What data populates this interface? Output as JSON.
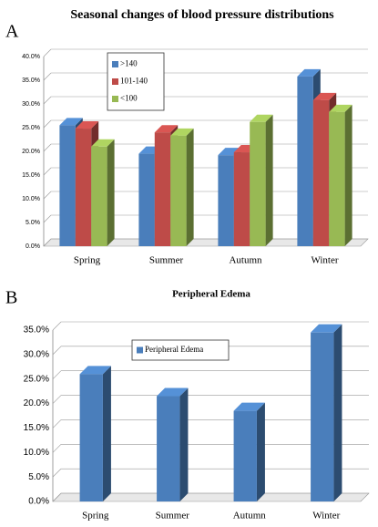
{
  "chart_data": [
    {
      "type": "bar",
      "panel_label": "A",
      "title": "Seasonal changes of blood pressure distributions",
      "categories": [
        "Spring",
        "Summer",
        "Autumn",
        "Winter"
      ],
      "series": [
        {
          "name": ">140",
          "color": "#4a7ebb",
          "values": [
            25.5,
            19.5,
            19.2,
            35.8
          ]
        },
        {
          "name": "101-140",
          "color": "#be4b48",
          "values": [
            24.8,
            24.0,
            19.8,
            30.8
          ]
        },
        {
          "name": "<100",
          "color": "#98b954",
          "values": [
            21.0,
            23.3,
            26.2,
            28.3
          ]
        }
      ],
      "ylim": [
        0,
        40
      ],
      "yticks": [
        {
          "value": 0,
          "label": "0.0%"
        },
        {
          "value": 5,
          "label": "5.0%"
        },
        {
          "value": 10,
          "label": "10.0%"
        },
        {
          "value": 15,
          "label": "15.0%"
        },
        {
          "value": 20,
          "label": "20.0%"
        },
        {
          "value": 25,
          "label": "25.0%"
        },
        {
          "value": 30,
          "label": "30.0%"
        },
        {
          "value": 35,
          "label": "35.0%"
        },
        {
          "value": 40,
          "label": "40.0%"
        }
      ],
      "grid": true
    },
    {
      "type": "bar",
      "panel_label": "B",
      "title": "Peripheral Edema",
      "categories": [
        "Spring",
        "Summer",
        "Autumn",
        "Winter"
      ],
      "series": [
        {
          "name": "Peripheral Edema",
          "color": "#4a7ebb",
          "values": [
            26.0,
            21.5,
            18.5,
            34.5
          ]
        }
      ],
      "ylim": [
        0,
        35
      ],
      "yticks": [
        {
          "value": 0,
          "label": "0.0%"
        },
        {
          "value": 5,
          "label": "5.0%"
        },
        {
          "value": 10,
          "label": "10.0%"
        },
        {
          "value": 15,
          "label": "15.0%"
        },
        {
          "value": 20,
          "label": "20.0%"
        },
        {
          "value": 25,
          "label": "25.0%"
        },
        {
          "value": 30,
          "label": "30.0%"
        },
        {
          "value": 35,
          "label": "35.0%"
        }
      ],
      "grid": true
    }
  ]
}
